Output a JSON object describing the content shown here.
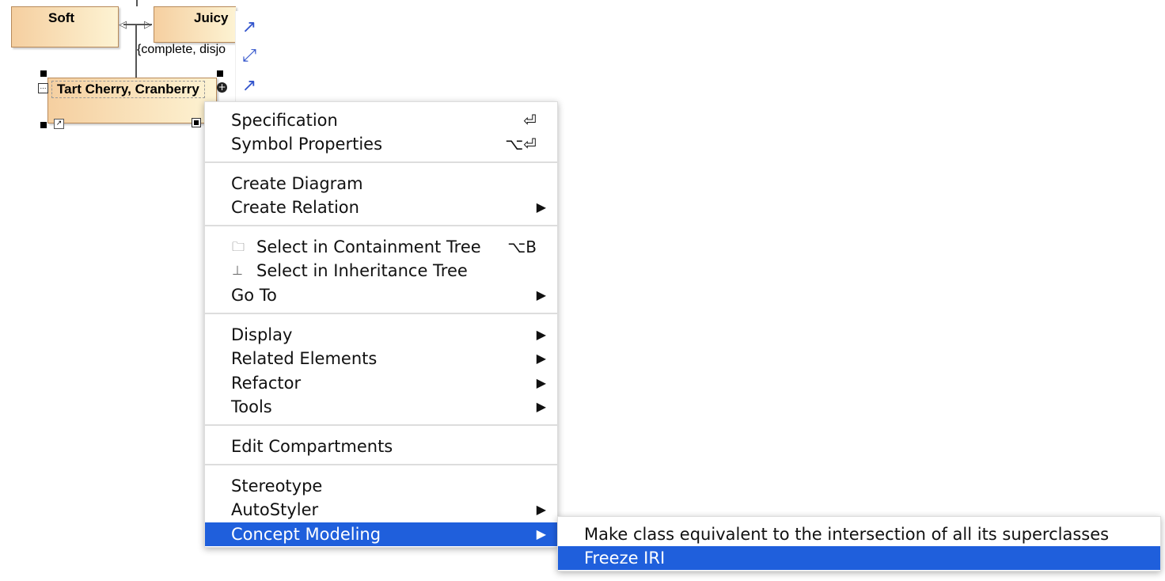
{
  "diagram": {
    "classes": [
      "Soft",
      "Juicy",
      "Tart Cherry, Cranberry"
    ],
    "constraint": "{complete, disjo"
  },
  "menu": {
    "items": [
      {
        "label": "Specification",
        "shortcut": "⏎"
      },
      {
        "label": "Symbol Properties",
        "shortcut": "⌥⏎"
      },
      {
        "label": "Create Diagram"
      },
      {
        "label": "Create Relation",
        "submenu": true
      },
      {
        "label": "Select in Containment Tree",
        "shortcut": "⌥B",
        "icon": "containment-tree-icon"
      },
      {
        "label": "Select in Inheritance Tree",
        "icon": "inheritance-tree-icon"
      },
      {
        "label": "Go To",
        "submenu": true
      },
      {
        "label": "Display",
        "submenu": true
      },
      {
        "label": "Related Elements",
        "submenu": true
      },
      {
        "label": "Refactor",
        "submenu": true
      },
      {
        "label": "Tools",
        "submenu": true
      },
      {
        "label": "Edit Compartments"
      },
      {
        "label": "Stereotype"
      },
      {
        "label": "AutoStyler",
        "submenu": true
      },
      {
        "label": "Concept Modeling",
        "submenu": true,
        "highlighted": true
      }
    ],
    "arrow": "▶"
  },
  "submenu": {
    "items": [
      {
        "label": "Make class equivalent to the intersection of all its superclasses"
      },
      {
        "label": "Freeze IRI",
        "highlighted": true
      }
    ]
  },
  "colors": {
    "highlight": "#1f5fdc"
  }
}
